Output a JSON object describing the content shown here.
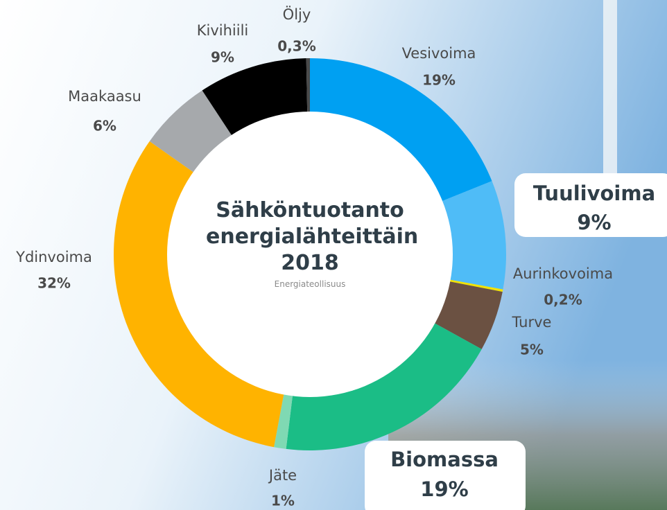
{
  "chart_data": {
    "type": "donut",
    "title": "Sähköntuotanto energialähteittäin 2018",
    "subtitle": "Energiateollisuus",
    "categories": [
      "Vesivoima",
      "Tuulivoima",
      "Aurinkovoima",
      "Turve",
      "Biomassa",
      "Jäte",
      "Ydinvoima",
      "Maakaasu",
      "Kivihiili",
      "Öljy"
    ],
    "values": [
      19,
      9,
      0.2,
      5,
      19,
      1,
      32,
      6,
      9,
      0.3
    ],
    "value_labels": [
      "19%",
      "9%",
      "0,2%",
      "5%",
      "19%",
      "1%",
      "32%",
      "6%",
      "9%",
      "0,3%"
    ],
    "colors": [
      "#00a0f2",
      "#4fbcf7",
      "#f2e200",
      "#6b5142",
      "#1bbd86",
      "#7fd9b3",
      "#ffb300",
      "#a6a9ac",
      "#000000",
      "#4a4a4a"
    ]
  }
}
